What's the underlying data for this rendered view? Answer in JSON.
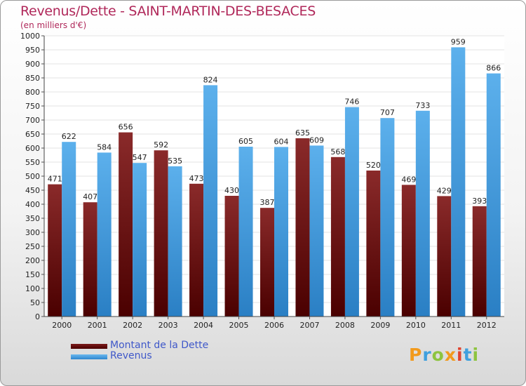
{
  "title": "Revenus/Dette - SAINT-MARTIN-DES-BESACES",
  "subtitle": "(en milliers d'€)",
  "colors": {
    "debt": "#7a1a1a",
    "revenue": "#4aa3e6",
    "title": "#b0285a",
    "legend_text": "#3f58c9"
  },
  "chart_data": {
    "type": "bar",
    "categories": [
      "2000",
      "2001",
      "2002",
      "2003",
      "2004",
      "2005",
      "2006",
      "2007",
      "2008",
      "2009",
      "2010",
      "2011",
      "2012"
    ],
    "series": [
      {
        "name": "Montant de la Dette",
        "values": [
          471,
          407,
          656,
          592,
          473,
          430,
          387,
          635,
          568,
          520,
          469,
          429,
          393
        ]
      },
      {
        "name": "Revenus",
        "values": [
          622,
          584,
          547,
          535,
          824,
          605,
          604,
          609,
          746,
          707,
          733,
          959,
          866
        ]
      }
    ],
    "ylim": [
      0,
      1000
    ],
    "yticks": [
      0,
      50,
      100,
      150,
      200,
      250,
      300,
      350,
      400,
      450,
      500,
      550,
      600,
      650,
      700,
      750,
      800,
      850,
      900,
      950,
      1000
    ],
    "grid": true,
    "legend_position": "bottom-left"
  },
  "legend": {
    "debt_label": "Montant de la Dette",
    "revenue_label": "Revenus"
  },
  "logo": {
    "letters": [
      "P",
      "r",
      "o",
      "x",
      "i",
      "t",
      "i"
    ]
  }
}
